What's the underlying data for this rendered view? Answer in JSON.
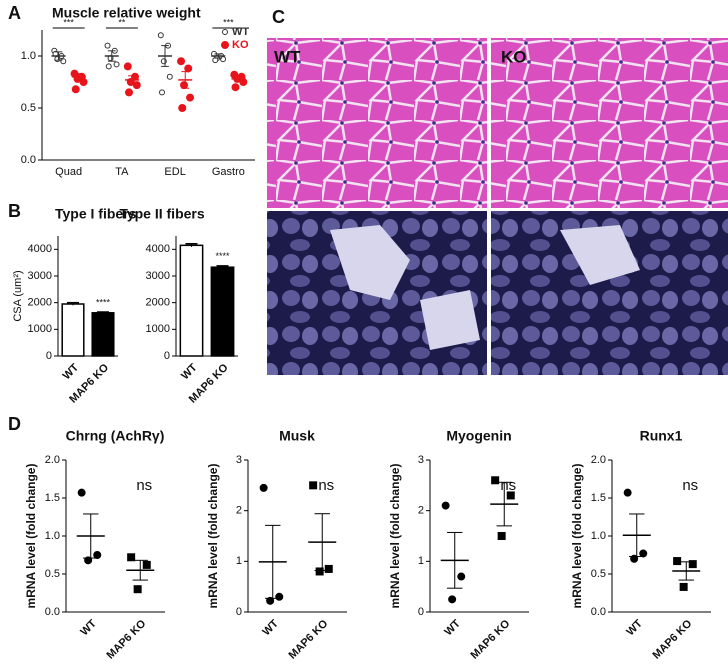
{
  "panels": [
    "A",
    "B",
    "C",
    "D"
  ],
  "panel_c": {
    "labels": [
      "WT",
      "KO"
    ]
  },
  "chart_data": [
    {
      "type": "strip",
      "title": "Muscle relative weight",
      "categories": [
        "Quad",
        "TA",
        "EDL",
        "Gastro"
      ],
      "series": [
        {
          "name": "WT",
          "color": "#333333",
          "marker": "open-circle",
          "values": [
            [
              1.05,
              1.0,
              0.97,
              0.95,
              1.02
            ],
            [
              1.1,
              1.05,
              0.98,
              0.92,
              0.9
            ],
            [
              1.2,
              1.1,
              0.95,
              0.8,
              0.65
            ],
            [
              1.02,
              1.0,
              0.98,
              0.97,
              0.96
            ]
          ],
          "means": [
            1.0,
            1.0,
            1.0,
            1.0
          ],
          "errors": [
            0.04,
            0.05,
            0.1,
            0.02
          ]
        },
        {
          "name": "KO",
          "color": "#e8141b",
          "marker": "circle",
          "values": [
            [
              0.83,
              0.8,
              0.78,
              0.75,
              0.68
            ],
            [
              0.9,
              0.8,
              0.75,
              0.72,
              0.65
            ],
            [
              0.95,
              0.88,
              0.72,
              0.6,
              0.5
            ],
            [
              0.82,
              0.8,
              0.78,
              0.75,
              0.7
            ]
          ],
          "means": [
            0.8,
            0.77,
            0.77,
            0.78
          ],
          "errors": [
            0.03,
            0.04,
            0.08,
            0.03
          ]
        }
      ],
      "annotations": [
        "***",
        "**",
        null,
        "***"
      ],
      "ylim": [
        0,
        1.25
      ],
      "yticks": [
        {
          "value": 0,
          "label": "0.0"
        },
        {
          "value": 0.5,
          "label": "0.5"
        },
        {
          "value": 1,
          "label": "1.0"
        }
      ],
      "legend": "upper right"
    },
    {
      "type": "bar",
      "title": "Type I fibers",
      "ylabel": "CSA (um²)",
      "categories": [
        "WT",
        "MAP6 KO"
      ],
      "values": [
        1950,
        1620
      ],
      "errors": [
        50,
        30
      ],
      "colors": [
        "#ffffff",
        "#000000"
      ],
      "annotation": "****",
      "ylim": [
        0,
        4500
      ],
      "yticks": [
        0,
        1000,
        2000,
        3000,
        4000
      ]
    },
    {
      "type": "bar",
      "title": "Type II fibers",
      "categories": [
        "WT",
        "MAP6 KO"
      ],
      "values": [
        4150,
        3330
      ],
      "errors": [
        60,
        50
      ],
      "colors": [
        "#ffffff",
        "#000000"
      ],
      "annotation": "****",
      "ylim": [
        0,
        4500
      ],
      "yticks": [
        0,
        1000,
        2000,
        3000,
        4000
      ]
    },
    {
      "type": "strip",
      "title": "Chrng (AchRγ)",
      "ylabel": "mRNA level (fold change)",
      "categories": [
        "WT",
        "MAP6 KO"
      ],
      "markers": [
        "circle",
        "square"
      ],
      "values": [
        [
          1.57,
          0.75,
          0.68
        ],
        [
          0.72,
          0.62,
          0.3
        ]
      ],
      "means": [
        1.0,
        0.55
      ],
      "errors": [
        0.29,
        0.13
      ],
      "annotation": "ns",
      "ylim": [
        0,
        2
      ],
      "yticks": [
        {
          "value": 0,
          "label": "0.0"
        },
        {
          "value": 0.5,
          "label": "0.5"
        },
        {
          "value": 1,
          "label": "1.0"
        },
        {
          "value": 1.5,
          "label": "1.5"
        },
        {
          "value": 2,
          "label": "2.0"
        }
      ]
    },
    {
      "type": "strip",
      "title": "Musk",
      "ylabel": "mRNA level (fold change)",
      "categories": [
        "WT",
        "MAP6 KO"
      ],
      "markers": [
        "circle",
        "square"
      ],
      "values": [
        [
          2.45,
          0.3,
          0.22
        ],
        [
          2.5,
          0.85,
          0.8
        ]
      ],
      "means": [
        0.99,
        1.38
      ],
      "errors": [
        0.72,
        0.56
      ],
      "annotation": "ns",
      "ylim": [
        0,
        3
      ],
      "yticks": [
        0,
        1,
        2,
        3
      ]
    },
    {
      "type": "strip",
      "title": "Myogenin",
      "ylabel": "mRNA level (fold change)",
      "categories": [
        "WT",
        "MAP6 KO"
      ],
      "markers": [
        "circle",
        "square"
      ],
      "values": [
        [
          2.1,
          0.7,
          0.25
        ],
        [
          2.6,
          2.3,
          1.5
        ]
      ],
      "means": [
        1.02,
        2.13
      ],
      "errors": [
        0.55,
        0.43
      ],
      "annotation": "ns",
      "ylim": [
        0,
        3
      ],
      "yticks": [
        0,
        1,
        2,
        3
      ]
    },
    {
      "type": "strip",
      "title": "Runx1",
      "ylabel": "mRNA level (fold change)",
      "categories": [
        "WT",
        "MAP6 KO"
      ],
      "markers": [
        "circle",
        "square"
      ],
      "values": [
        [
          1.57,
          0.77,
          0.7
        ],
        [
          0.67,
          0.63,
          0.33
        ]
      ],
      "means": [
        1.01,
        0.54
      ],
      "errors": [
        0.28,
        0.12
      ],
      "annotation": "ns",
      "ylim": [
        0,
        2
      ],
      "yticks": [
        {
          "value": 0,
          "label": "0.0"
        },
        {
          "value": 0.5,
          "label": "0.5"
        },
        {
          "value": 1,
          "label": "1.0"
        },
        {
          "value": 1.5,
          "label": "1.5"
        },
        {
          "value": 2,
          "label": "2.0"
        }
      ]
    }
  ]
}
